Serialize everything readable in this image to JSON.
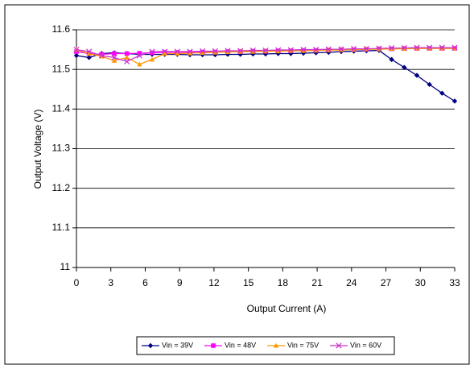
{
  "chart_data": {
    "type": "line",
    "xlabel": "Output Current (A)",
    "ylabel": "Output Voltage (V)",
    "x": [
      0,
      1.1,
      2.2,
      3.3,
      4.4,
      5.5,
      6.6,
      7.7,
      8.8,
      9.9,
      11,
      12.1,
      13.2,
      14.3,
      15.4,
      16.5,
      17.6,
      18.7,
      19.8,
      20.9,
      22,
      23.1,
      24.2,
      25.3,
      26.4,
      27.5,
      28.6,
      29.7,
      30.8,
      31.9,
      33
    ],
    "xlim": [
      0,
      33
    ],
    "xticks": [
      0,
      3,
      6,
      9,
      12,
      15,
      18,
      21,
      24,
      27,
      30,
      33
    ],
    "ylim": [
      11,
      11.6
    ],
    "yticks": [
      11,
      11.1,
      11.2,
      11.3,
      11.4,
      11.5,
      11.6
    ],
    "grid": true,
    "series": [
      {
        "name": "Vin = 39V",
        "color": "#000080",
        "marker": "diamond",
        "values": [
          11.535,
          11.53,
          11.54,
          11.542,
          11.54,
          11.538,
          11.538,
          11.538,
          11.538,
          11.537,
          11.537,
          11.537,
          11.538,
          11.538,
          11.539,
          11.539,
          11.54,
          11.54,
          11.541,
          11.542,
          11.543,
          11.545,
          11.546,
          11.547,
          11.548,
          11.525,
          11.505,
          11.485,
          11.462,
          11.44,
          11.42
        ]
      },
      {
        "name": "Vin = 48V",
        "color": "#ff00ff",
        "marker": "square",
        "values": [
          11.545,
          11.54,
          11.538,
          11.54,
          11.54,
          11.541,
          11.542,
          11.543,
          11.543,
          11.543,
          11.544,
          11.544,
          11.545,
          11.545,
          11.546,
          11.546,
          11.547,
          11.547,
          11.548,
          11.548,
          11.549,
          11.55,
          11.55,
          11.551,
          11.552,
          11.552,
          11.553,
          11.553,
          11.553,
          11.553,
          11.553
        ]
      },
      {
        "name": "Vin = 75V",
        "color": "#ff9900",
        "marker": "triangle",
        "values": [
          11.55,
          11.54,
          11.533,
          11.522,
          11.53,
          11.513,
          11.525,
          11.54,
          11.54,
          11.541,
          11.542,
          11.543,
          11.544,
          11.545,
          11.545,
          11.546,
          11.546,
          11.547,
          11.547,
          11.548,
          11.549,
          11.549,
          11.55,
          11.551,
          11.551,
          11.552,
          11.552,
          11.553,
          11.553,
          11.553,
          11.553
        ]
      },
      {
        "name": "Vin = 60V",
        "color": "#cc33cc",
        "marker": "x",
        "values": [
          11.55,
          11.545,
          11.535,
          11.53,
          11.52,
          11.535,
          11.545,
          11.545,
          11.545,
          11.545,
          11.546,
          11.546,
          11.547,
          11.547,
          11.548,
          11.548,
          11.549,
          11.549,
          11.55,
          11.55,
          11.551,
          11.551,
          11.552,
          11.552,
          11.553,
          11.554,
          11.554,
          11.555,
          11.555,
          11.555,
          11.555
        ]
      }
    ]
  }
}
